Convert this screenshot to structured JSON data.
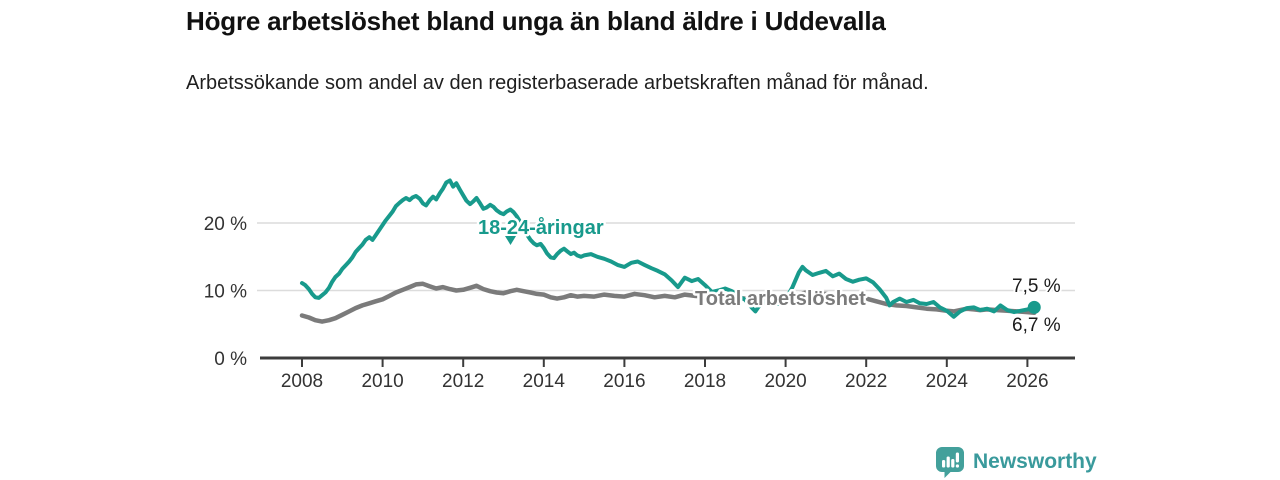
{
  "page": {
    "background": "#ffffff"
  },
  "header": {
    "title": "Högre arbetslöshet bland unga än bland äldre i Uddevalla",
    "subtitle": "Arbetssökande som andel av den registerbaserade arbetskraften månad för månad."
  },
  "footer": {
    "brand": "Newsworthy",
    "logo_icon": "bar-chart-speech-bubble-icon",
    "brand_color": "#3a9a9c"
  },
  "chart_data": {
    "type": "line",
    "title": "Högre arbetslöshet bland unga än bland äldre i Uddevalla",
    "subtitle": "Arbetssökande som andel av den registerbaserade arbetskraften månad för månad.",
    "unit": "%",
    "grid": "horizontal",
    "legend_position": "inline-labels",
    "x_domain": [
      2008.0,
      2026.17
    ],
    "ylim": [
      0,
      28
    ],
    "y_ticks": [
      0,
      10,
      20
    ],
    "y_tick_labels": [
      "0 %",
      "10 %",
      "20 %"
    ],
    "x_tick_years": [
      2008,
      2010,
      2012,
      2014,
      2016,
      2018,
      2020,
      2022,
      2024,
      2026
    ],
    "colors": {
      "young": "#189a8c",
      "total": "#7b7b7b",
      "grid": "#dcdcdc",
      "axis": "#3c3c3c",
      "axis_label": "#333333",
      "end_label": "#1a1a1a"
    },
    "annotations": {
      "young_label": "18-24-åringar",
      "young_label_arrow": "triangle-down-icon",
      "total_label": "Total arbetslöshet",
      "young_end_label": "7,5 %",
      "total_end_label": "6,7 %"
    },
    "series": [
      {
        "name": "18-24-åringar",
        "color": "#189a8c",
        "end_value": 7.5,
        "end_label": "7,5 %",
        "points": [
          [
            2008.0,
            11.1
          ],
          [
            2008.08,
            10.8
          ],
          [
            2008.17,
            10.2
          ],
          [
            2008.25,
            9.5
          ],
          [
            2008.33,
            9.0
          ],
          [
            2008.42,
            8.9
          ],
          [
            2008.5,
            9.3
          ],
          [
            2008.58,
            9.7
          ],
          [
            2008.67,
            10.4
          ],
          [
            2008.75,
            11.3
          ],
          [
            2008.83,
            12.0
          ],
          [
            2008.92,
            12.5
          ],
          [
            2009.0,
            13.2
          ],
          [
            2009.08,
            13.7
          ],
          [
            2009.17,
            14.3
          ],
          [
            2009.25,
            14.9
          ],
          [
            2009.33,
            15.7
          ],
          [
            2009.42,
            16.3
          ],
          [
            2009.5,
            16.8
          ],
          [
            2009.58,
            17.5
          ],
          [
            2009.67,
            17.9
          ],
          [
            2009.75,
            17.5
          ],
          [
            2009.83,
            18.2
          ],
          [
            2009.92,
            19.0
          ],
          [
            2010.0,
            19.7
          ],
          [
            2010.08,
            20.4
          ],
          [
            2010.17,
            21.1
          ],
          [
            2010.25,
            21.7
          ],
          [
            2010.33,
            22.5
          ],
          [
            2010.42,
            23.0
          ],
          [
            2010.5,
            23.4
          ],
          [
            2010.58,
            23.7
          ],
          [
            2010.67,
            23.4
          ],
          [
            2010.75,
            23.8
          ],
          [
            2010.83,
            24.0
          ],
          [
            2010.92,
            23.6
          ],
          [
            2011.0,
            22.9
          ],
          [
            2011.08,
            22.6
          ],
          [
            2011.17,
            23.4
          ],
          [
            2011.25,
            23.9
          ],
          [
            2011.33,
            23.5
          ],
          [
            2011.42,
            24.4
          ],
          [
            2011.5,
            25.1
          ],
          [
            2011.58,
            26.0
          ],
          [
            2011.67,
            26.3
          ],
          [
            2011.75,
            25.4
          ],
          [
            2011.83,
            25.9
          ],
          [
            2011.92,
            24.9
          ],
          [
            2012.0,
            24.1
          ],
          [
            2012.08,
            23.3
          ],
          [
            2012.17,
            22.8
          ],
          [
            2012.25,
            23.2
          ],
          [
            2012.33,
            23.7
          ],
          [
            2012.42,
            22.9
          ],
          [
            2012.5,
            22.1
          ],
          [
            2012.58,
            22.3
          ],
          [
            2012.67,
            22.7
          ],
          [
            2012.75,
            22.4
          ],
          [
            2012.83,
            21.9
          ],
          [
            2012.92,
            21.5
          ],
          [
            2013.0,
            21.3
          ],
          [
            2013.08,
            21.7
          ],
          [
            2013.17,
            22.0
          ],
          [
            2013.25,
            21.6
          ],
          [
            2013.33,
            21.0
          ],
          [
            2013.42,
            20.1
          ],
          [
            2013.5,
            19.2
          ],
          [
            2013.58,
            18.3
          ],
          [
            2013.67,
            17.5
          ],
          [
            2013.75,
            17.0
          ],
          [
            2013.83,
            16.7
          ],
          [
            2013.92,
            16.9
          ],
          [
            2014.0,
            16.3
          ],
          [
            2014.08,
            15.5
          ],
          [
            2014.17,
            14.9
          ],
          [
            2014.25,
            14.8
          ],
          [
            2014.33,
            15.4
          ],
          [
            2014.42,
            15.9
          ],
          [
            2014.5,
            16.2
          ],
          [
            2014.58,
            15.8
          ],
          [
            2014.67,
            15.4
          ],
          [
            2014.75,
            15.6
          ],
          [
            2014.83,
            15.2
          ],
          [
            2014.92,
            15.0
          ],
          [
            2015.0,
            15.2
          ],
          [
            2015.17,
            15.4
          ],
          [
            2015.33,
            15.0
          ],
          [
            2015.5,
            14.7
          ],
          [
            2015.67,
            14.3
          ],
          [
            2015.83,
            13.8
          ],
          [
            2016.0,
            13.5
          ],
          [
            2016.17,
            14.1
          ],
          [
            2016.33,
            14.3
          ],
          [
            2016.5,
            13.8
          ],
          [
            2016.67,
            13.3
          ],
          [
            2016.83,
            12.9
          ],
          [
            2017.0,
            12.4
          ],
          [
            2017.17,
            11.5
          ],
          [
            2017.33,
            10.5
          ],
          [
            2017.5,
            11.9
          ],
          [
            2017.67,
            11.4
          ],
          [
            2017.83,
            11.7
          ],
          [
            2018.0,
            10.8
          ],
          [
            2018.17,
            9.8
          ],
          [
            2018.33,
            10.0
          ],
          [
            2018.5,
            10.3
          ],
          [
            2018.67,
            9.9
          ],
          [
            2018.83,
            9.2
          ],
          [
            2019.0,
            8.6
          ],
          [
            2019.17,
            7.4
          ],
          [
            2019.25,
            6.9
          ],
          [
            2019.33,
            7.6
          ],
          [
            2019.5,
            8.3
          ],
          [
            2019.67,
            8.1
          ],
          [
            2019.83,
            8.0
          ],
          [
            2020.0,
            8.7
          ],
          [
            2020.17,
            10.5
          ],
          [
            2020.33,
            12.7
          ],
          [
            2020.42,
            13.5
          ],
          [
            2020.5,
            13.0
          ],
          [
            2020.67,
            12.3
          ],
          [
            2020.83,
            12.6
          ],
          [
            2021.0,
            12.9
          ],
          [
            2021.17,
            12.1
          ],
          [
            2021.33,
            12.5
          ],
          [
            2021.5,
            11.7
          ],
          [
            2021.67,
            11.3
          ],
          [
            2021.83,
            11.6
          ],
          [
            2022.0,
            11.8
          ],
          [
            2022.17,
            11.2
          ],
          [
            2022.33,
            10.2
          ],
          [
            2022.5,
            8.9
          ],
          [
            2022.58,
            7.8
          ],
          [
            2022.67,
            8.3
          ],
          [
            2022.83,
            8.8
          ],
          [
            2023.0,
            8.3
          ],
          [
            2023.17,
            8.6
          ],
          [
            2023.33,
            8.1
          ],
          [
            2023.5,
            8.0
          ],
          [
            2023.67,
            8.3
          ],
          [
            2023.83,
            7.5
          ],
          [
            2024.0,
            7.0
          ],
          [
            2024.17,
            6.1
          ],
          [
            2024.33,
            6.9
          ],
          [
            2024.5,
            7.4
          ],
          [
            2024.67,
            7.5
          ],
          [
            2024.83,
            7.1
          ],
          [
            2025.0,
            7.3
          ],
          [
            2025.17,
            6.9
          ],
          [
            2025.33,
            7.8
          ],
          [
            2025.5,
            7.1
          ],
          [
            2025.67,
            6.8
          ],
          [
            2025.83,
            7.0
          ],
          [
            2026.0,
            7.2
          ],
          [
            2026.17,
            7.5
          ]
        ]
      },
      {
        "name": "Total arbetslöshet",
        "color": "#7b7b7b",
        "end_value": 6.7,
        "end_label": "6,7 %",
        "points": [
          [
            2008.0,
            6.3
          ],
          [
            2008.17,
            6.0
          ],
          [
            2008.33,
            5.6
          ],
          [
            2008.5,
            5.4
          ],
          [
            2008.67,
            5.6
          ],
          [
            2008.83,
            5.9
          ],
          [
            2009.0,
            6.4
          ],
          [
            2009.17,
            6.9
          ],
          [
            2009.33,
            7.4
          ],
          [
            2009.5,
            7.8
          ],
          [
            2009.67,
            8.1
          ],
          [
            2009.83,
            8.4
          ],
          [
            2010.0,
            8.7
          ],
          [
            2010.17,
            9.2
          ],
          [
            2010.33,
            9.7
          ],
          [
            2010.5,
            10.1
          ],
          [
            2010.67,
            10.5
          ],
          [
            2010.83,
            10.9
          ],
          [
            2011.0,
            11.0
          ],
          [
            2011.17,
            10.6
          ],
          [
            2011.33,
            10.3
          ],
          [
            2011.5,
            10.5
          ],
          [
            2011.67,
            10.2
          ],
          [
            2011.83,
            10.0
          ],
          [
            2012.0,
            10.1
          ],
          [
            2012.17,
            10.4
          ],
          [
            2012.33,
            10.7
          ],
          [
            2012.5,
            10.2
          ],
          [
            2012.67,
            9.9
          ],
          [
            2012.83,
            9.7
          ],
          [
            2013.0,
            9.6
          ],
          [
            2013.17,
            9.9
          ],
          [
            2013.33,
            10.1
          ],
          [
            2013.5,
            9.9
          ],
          [
            2013.67,
            9.7
          ],
          [
            2013.83,
            9.5
          ],
          [
            2014.0,
            9.4
          ],
          [
            2014.17,
            9.0
          ],
          [
            2014.33,
            8.8
          ],
          [
            2014.5,
            9.0
          ],
          [
            2014.67,
            9.3
          ],
          [
            2014.83,
            9.1
          ],
          [
            2015.0,
            9.2
          ],
          [
            2015.25,
            9.1
          ],
          [
            2015.5,
            9.4
          ],
          [
            2015.75,
            9.2
          ],
          [
            2016.0,
            9.1
          ],
          [
            2016.25,
            9.5
          ],
          [
            2016.5,
            9.3
          ],
          [
            2016.75,
            9.0
          ],
          [
            2017.0,
            9.2
          ],
          [
            2017.25,
            9.0
          ],
          [
            2017.5,
            9.4
          ],
          [
            2017.75,
            9.2
          ],
          [
            2018.0,
            9.1
          ],
          [
            2018.25,
            9.3
          ],
          [
            2018.5,
            9.0
          ],
          [
            2018.75,
            8.9
          ],
          [
            2019.0,
            8.8
          ],
          [
            2019.25,
            8.6
          ],
          [
            2019.5,
            8.7
          ],
          [
            2019.75,
            8.6
          ],
          [
            2020.0,
            8.8
          ],
          [
            2020.25,
            9.3
          ],
          [
            2020.5,
            9.7
          ],
          [
            2020.75,
            9.6
          ],
          [
            2021.0,
            9.5
          ],
          [
            2021.25,
            9.3
          ],
          [
            2021.5,
            9.1
          ],
          [
            2021.75,
            9.0
          ],
          [
            2022.0,
            8.8
          ],
          [
            2022.25,
            8.4
          ],
          [
            2022.5,
            8.0
          ],
          [
            2022.75,
            7.8
          ],
          [
            2023.0,
            7.7
          ],
          [
            2023.25,
            7.5
          ],
          [
            2023.5,
            7.3
          ],
          [
            2023.75,
            7.2
          ],
          [
            2024.0,
            7.0
          ],
          [
            2024.17,
            6.9
          ],
          [
            2024.33,
            7.1
          ],
          [
            2024.5,
            7.3
          ],
          [
            2024.67,
            7.2
          ],
          [
            2024.83,
            7.1
          ],
          [
            2025.0,
            7.2
          ],
          [
            2025.25,
            7.1
          ],
          [
            2025.5,
            7.0
          ],
          [
            2025.75,
            6.9
          ],
          [
            2026.0,
            6.8
          ],
          [
            2026.17,
            6.7
          ]
        ]
      }
    ]
  }
}
